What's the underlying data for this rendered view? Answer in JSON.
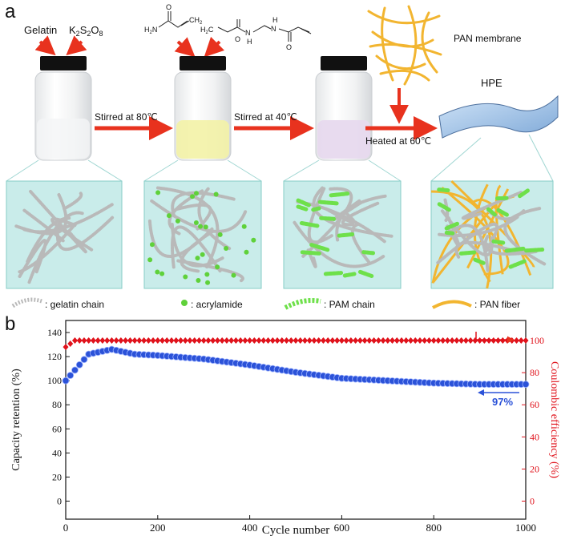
{
  "panel_a": {
    "label": "a",
    "reagents_vial1": {
      "gelatin": "Gelatin",
      "k_prefix": "K",
      "k_sub1": "2",
      "s": "S",
      "s_sub": "2",
      "o": "O",
      "o_sub": "8"
    },
    "molecule_labels": {
      "h2n": "H",
      "h2n_sub": "2",
      "h2n_n": "N",
      "o1": "O",
      "ch2": "CH",
      "ch2_sub": "2",
      "h2c": "H",
      "h2c_sub": "2",
      "h2c_c": "C",
      "o2": "O",
      "nh1": "N",
      "h1": "H",
      "nh2": "N",
      "h2": "H",
      "o3": "O"
    },
    "steps": [
      {
        "text": "Stirred at 80℃"
      },
      {
        "text": "Stirred at 40℃"
      },
      {
        "text": "Heated at 60℃"
      }
    ],
    "pan_membrane": "PAN membrane",
    "hpe": "HPE",
    "legend": [
      {
        "label": ": gelatin chain"
      },
      {
        "label": ": acrylamide"
      },
      {
        "label": ": PAM chain"
      },
      {
        "label": ": PAN fiber"
      }
    ],
    "colors": {
      "gelatin": "#b9b9b9",
      "acrylamide": "#5fd13a",
      "pam": "#6ee04a",
      "pan": "#f2b530",
      "arrow": "#e8321e",
      "box": "#c9ecea"
    }
  },
  "panel_b": {
    "label": "b",
    "annotation": "97%",
    "chart_data": {
      "type": "scatter",
      "xlabel": "Cycle number",
      "ylabel_left": "Capacity retention (%)",
      "ylabel_right": "Coulombic efficiency (%)",
      "xlim": [
        0,
        1000
      ],
      "ylim_left": [
        -15,
        150
      ],
      "ylim_right": [
        -11.25,
        112.5
      ],
      "x_ticks": [
        "0",
        "200",
        "400",
        "600",
        "800",
        "1000"
      ],
      "y_ticks_left": [
        "0",
        "20",
        "40",
        "60",
        "80",
        "100",
        "120",
        "140"
      ],
      "y_ticks_right": [
        "0",
        "20",
        "40",
        "60",
        "80",
        "100"
      ],
      "series": [
        {
          "axis": "left",
          "color": "#2b52d8",
          "x": [
            0,
            50,
            100,
            150,
            200,
            300,
            400,
            500,
            600,
            700,
            800,
            900,
            1000
          ],
          "y": [
            100,
            122,
            126,
            122,
            121,
            118,
            113,
            107,
            102,
            100,
            98,
            97,
            97
          ]
        },
        {
          "axis": "right",
          "color": "#e0131c",
          "x": [
            0,
            20,
            100,
            300,
            500,
            700,
            900,
            1000
          ],
          "y": [
            96,
            100,
            100,
            100,
            100,
            100,
            100,
            100
          ]
        }
      ]
    }
  }
}
